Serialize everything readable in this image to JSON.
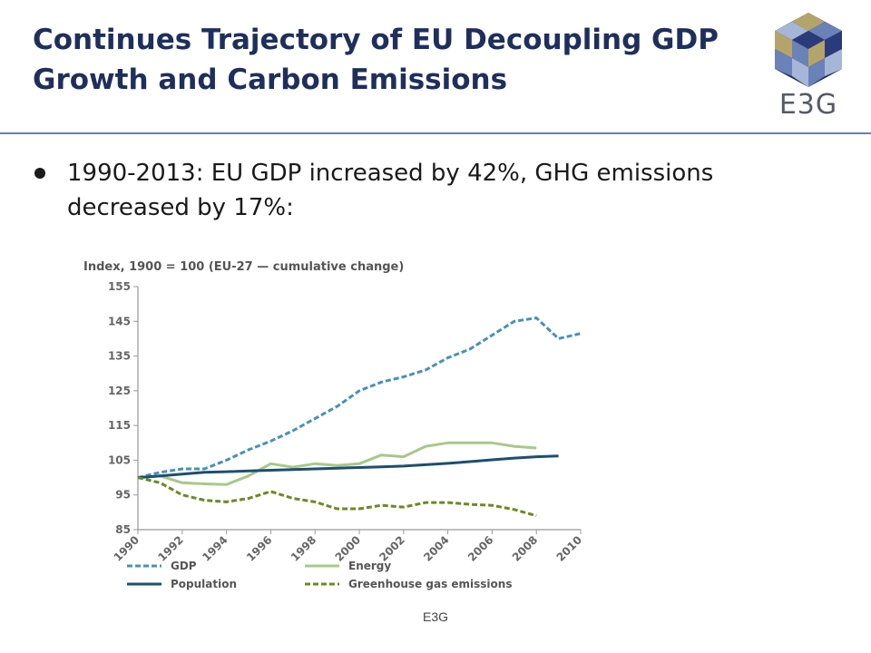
{
  "slide": {
    "title_line1": "Continues Trajectory of EU Decoupling GDP",
    "title_line2": "Growth and Carbon Emissions",
    "bullet": "1990-2013: EU GDP increased by 42%, GHG emissions decreased by 17%:",
    "logo_text": "E3G",
    "footer": "E3G",
    "colors": {
      "title": "#1f2f5c",
      "rule": "#6b7fa8"
    }
  },
  "chart_data": {
    "type": "line",
    "title": "Index, 1900 = 100 (EU-27 — cumulative change)",
    "xlabel": "",
    "ylabel": "",
    "ylim": [
      85,
      155
    ],
    "yticks": [
      155,
      145,
      135,
      125,
      115,
      105,
      95,
      85
    ],
    "xlim": [
      1990,
      2010
    ],
    "xticks": [
      "1990",
      "1992",
      "1994",
      "1996",
      "1998",
      "2000",
      "2002",
      "2004",
      "2006",
      "2008",
      "2010"
    ],
    "grid": false,
    "legend_position": "bottom",
    "series": [
      {
        "name": "GDP",
        "color": "#4a90b8",
        "dash": "dashed",
        "x": [
          1990,
          1991,
          1992,
          1993,
          1994,
          1995,
          1996,
          1997,
          1998,
          1999,
          2000,
          2001,
          2002,
          2003,
          2004,
          2005,
          2006,
          2007,
          2008,
          2009,
          2010
        ],
        "y": [
          100,
          101.5,
          102.5,
          102.5,
          105,
          108,
          110.5,
          113.5,
          117,
          120.5,
          125,
          127.5,
          129,
          131,
          134.5,
          137,
          141,
          145,
          146,
          140,
          141.5
        ]
      },
      {
        "name": "Energy",
        "color": "#a8c88a",
        "dash": "solid",
        "x": [
          1990,
          1991,
          1992,
          1993,
          1994,
          1995,
          1996,
          1997,
          1998,
          1999,
          2000,
          2001,
          2002,
          2003,
          2004,
          2005,
          2006,
          2007,
          2008
        ],
        "y": [
          100,
          100.5,
          98.5,
          98.2,
          98,
          100.5,
          104,
          103,
          104,
          103.5,
          104,
          106.5,
          106,
          109,
          110,
          110,
          110,
          109,
          108.5
        ]
      },
      {
        "name": "Population",
        "color": "#1f4e6e",
        "dash": "solid",
        "x": [
          1990,
          1991,
          1992,
          1993,
          1994,
          1995,
          1996,
          1997,
          1998,
          1999,
          2000,
          2001,
          2002,
          2003,
          2004,
          2005,
          2006,
          2007,
          2008,
          2009
        ],
        "y": [
          100,
          100.5,
          101,
          101.5,
          101.7,
          101.9,
          102.1,
          102.3,
          102.5,
          102.7,
          102.9,
          103.1,
          103.3,
          103.7,
          104.1,
          104.6,
          105.1,
          105.6,
          106,
          106.2
        ]
      },
      {
        "name": "Greenhouse gas emissions",
        "color": "#6b8a24",
        "dash": "dashed",
        "x": [
          1990,
          1991,
          1992,
          1993,
          1994,
          1995,
          1996,
          1997,
          1998,
          1999,
          2000,
          2001,
          2002,
          2003,
          2004,
          2005,
          2006,
          2007,
          2008
        ],
        "y": [
          100,
          98.5,
          95,
          93.5,
          93,
          94,
          96,
          94,
          93,
          91,
          91,
          92,
          91.5,
          92.8,
          92.8,
          92.3,
          92,
          90.8,
          89
        ]
      }
    ]
  }
}
